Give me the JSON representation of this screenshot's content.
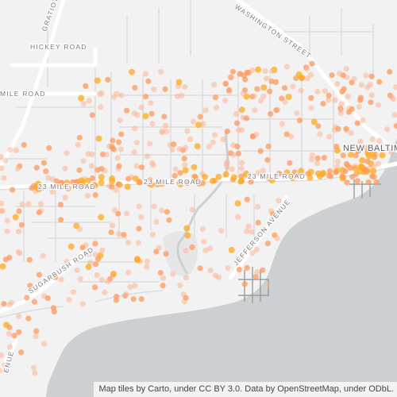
{
  "map": {
    "colors": {
      "land": "#f2f2f2",
      "water": "#cdd0d2",
      "major_road": "#ffffff",
      "minor_road": "#dcdcdc",
      "point_light": "#fbb593",
      "point_mid": "#fd9a5e",
      "point_strong": "#fdaa1e"
    },
    "labels": {
      "gratiot": "GRATIOT A",
      "hickey_road": "HICKEY ROAD",
      "mile_road": "MILE ROAD",
      "washington_street": "WASHINGTON STREET",
      "new_baltimore": "NEW BALTIM",
      "twenty_three_mile_a": "23 MILE ROAD",
      "twenty_three_mile_b": "23 MILE ROAD",
      "twenty_three_mile_c": "23 MILE ROAD",
      "jefferson_avenue": "JEFFERSON AVENUE",
      "sugarbush_road": "SUGARBUSH ROAD",
      "avenue_edge": "ENUE"
    },
    "attribution": "Map tiles by Carto, under CC BY 3.0. Data by OpenStreetMap, under ODbL."
  }
}
